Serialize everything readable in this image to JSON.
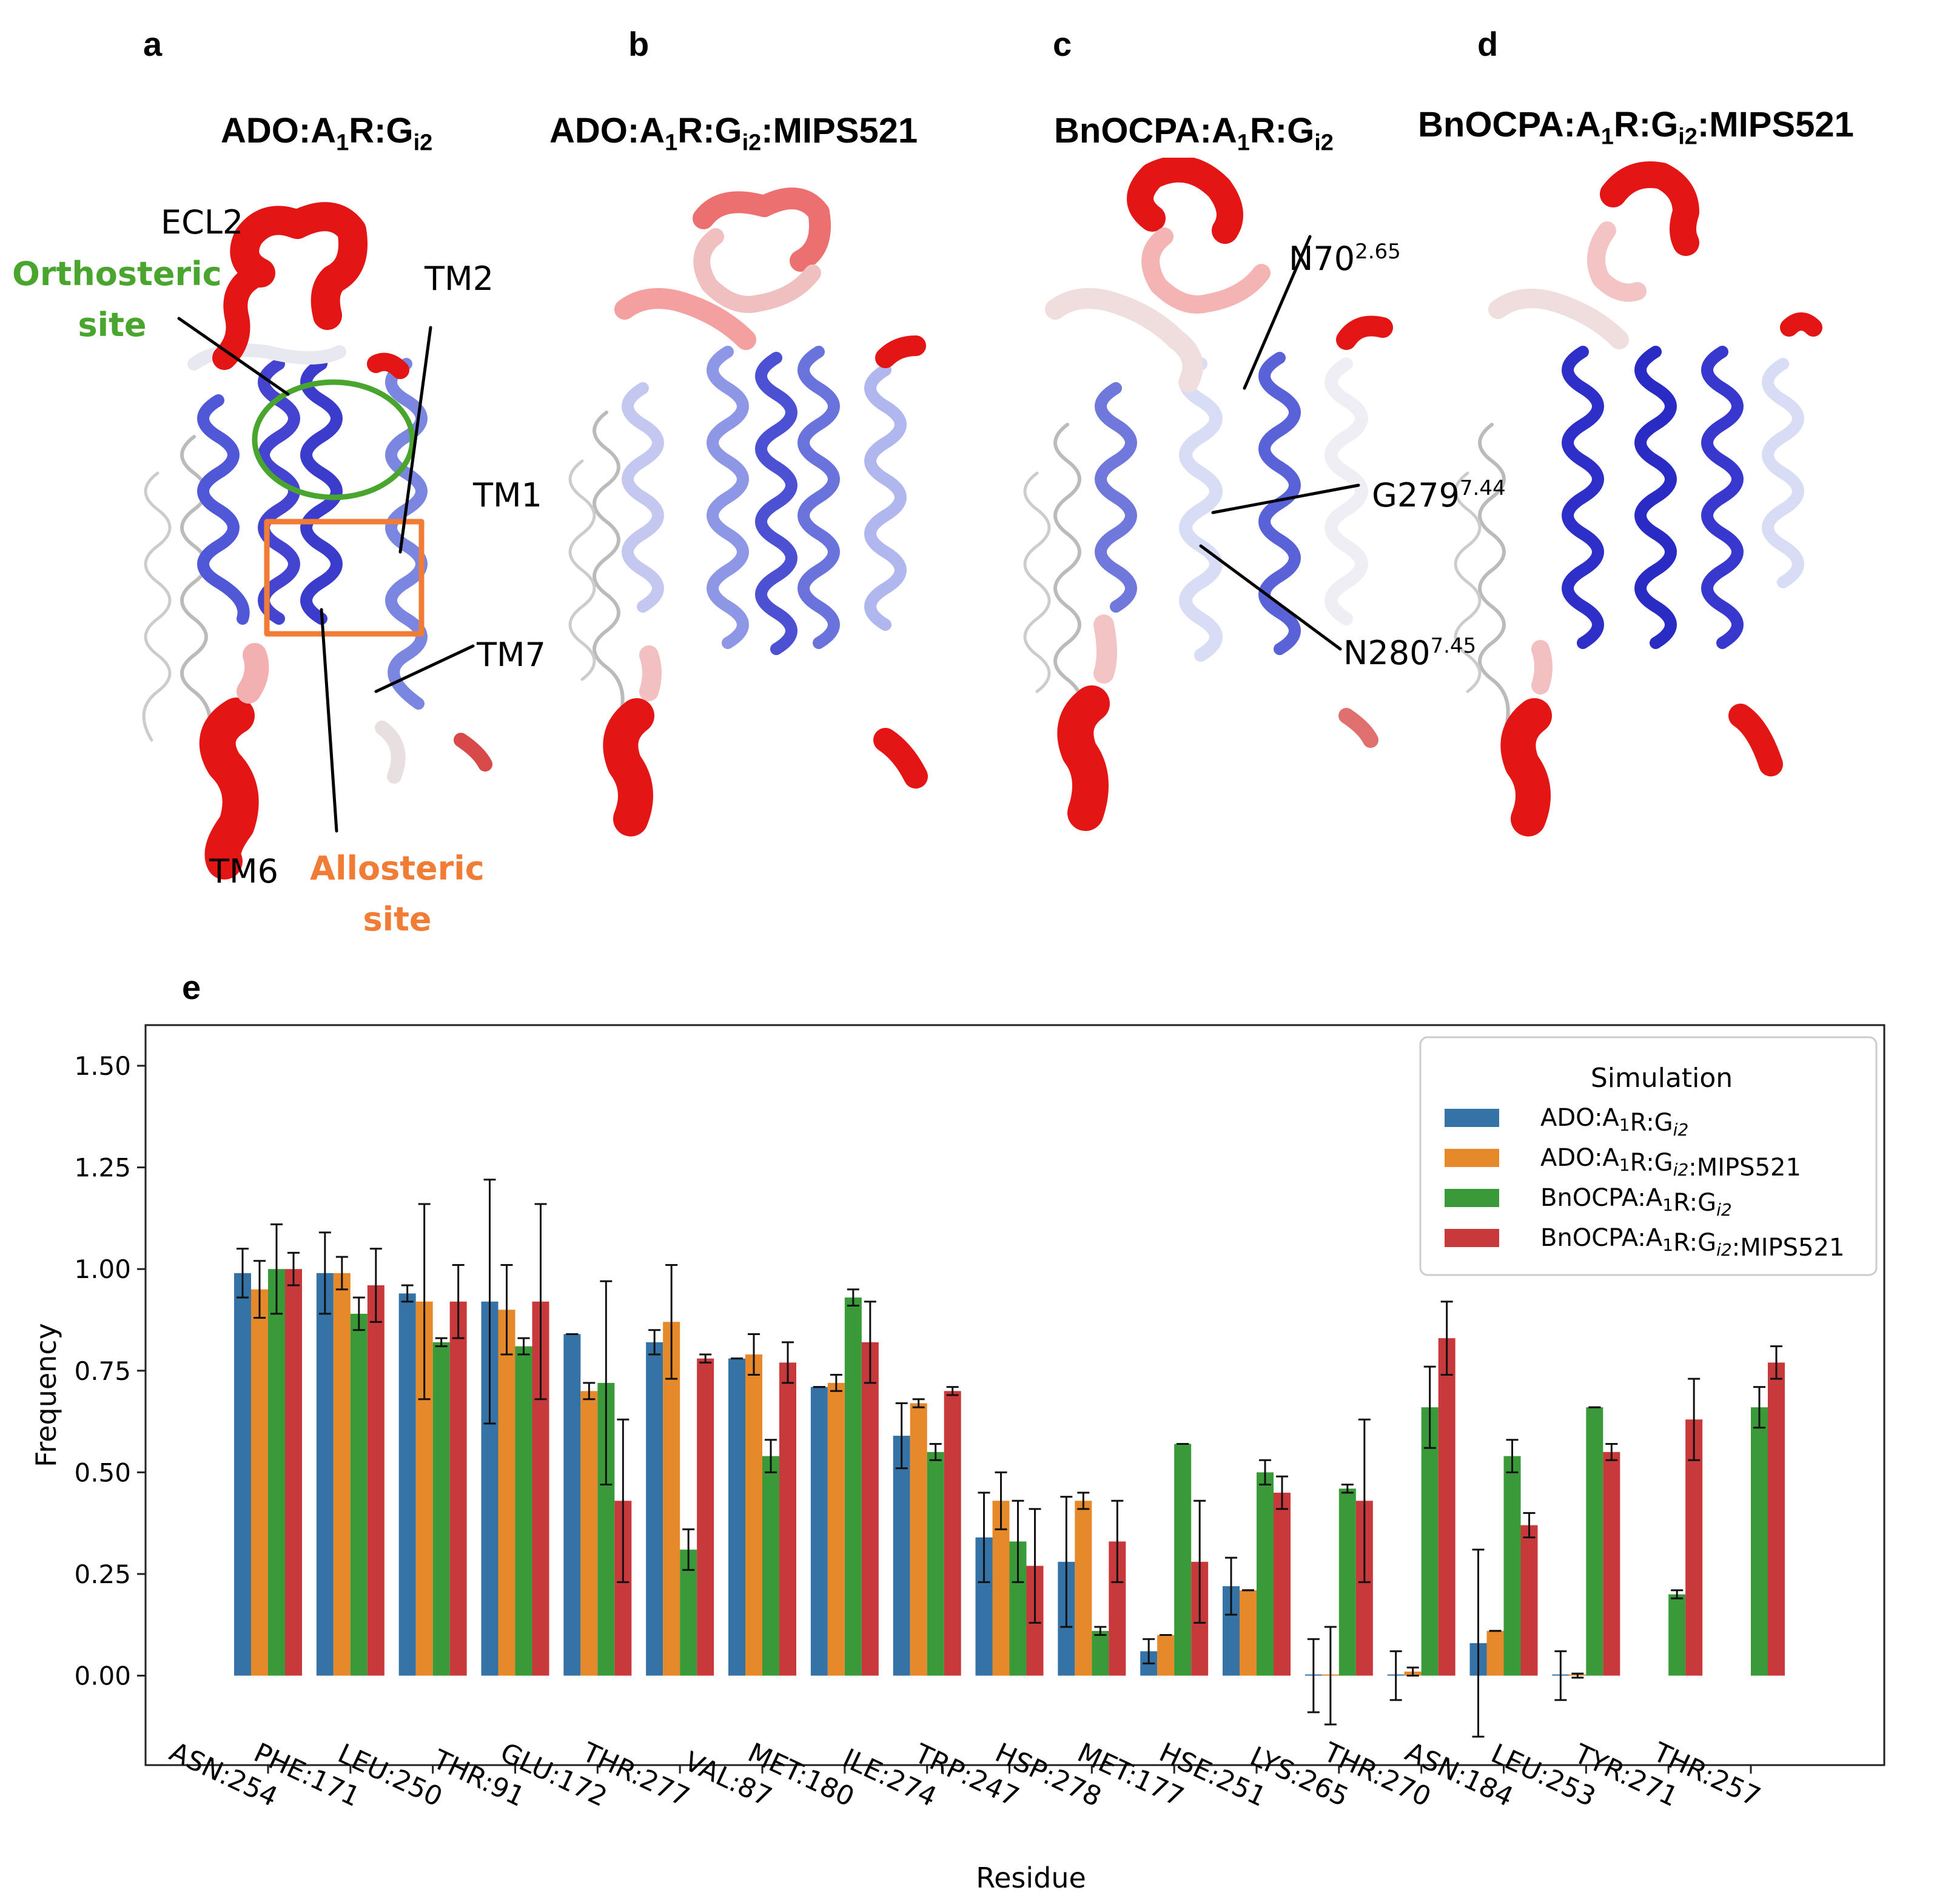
{
  "panels": {
    "a": {
      "letter": "a",
      "title_main": "ADO:A",
      "title_sub1": "1",
      "title_mid": "R:G",
      "title_sub2": "i2",
      "title_tail": ""
    },
    "b": {
      "letter": "b",
      "title_main": "ADO:A",
      "title_sub1": "1",
      "title_mid": "R:G",
      "title_sub2": "i2",
      "title_tail": ":MIPS521"
    },
    "c": {
      "letter": "c",
      "title_main": "BnOCPA:A",
      "title_sub1": "1",
      "title_mid": "R:G",
      "title_sub2": "i2",
      "title_tail": ""
    },
    "d": {
      "letter": "d",
      "title_main": "BnOCPA:A",
      "title_sub1": "1",
      "title_mid": "R:G",
      "title_sub2": "i2",
      "title_tail": ":MIPS521"
    },
    "e": {
      "letter": "e"
    }
  },
  "annotations_a": {
    "ecl2": "ECL2",
    "orthosteric_1": "Orthosteric",
    "orthosteric_2": "site",
    "tm2": "TM2",
    "tm1": "TM1",
    "tm7": "TM7",
    "tm6": "TM6",
    "allosteric_1": "Allosteric",
    "allosteric_2": "site"
  },
  "annotations_c": {
    "n70": "N70",
    "n70_sup": "2.65",
    "g279": "G279",
    "g279_sup": "7.44",
    "n280": "N280",
    "n280_sup": "7.45"
  },
  "colors": {
    "blue": "#3572a5",
    "orange": "#e5892b",
    "green": "#3a9a3a",
    "red": "#c8393c",
    "helix_blue": "#3c3ccc",
    "helix_red": "#e31515",
    "orthosteric_circle": "#4aa52e",
    "allosteric_box": "#f07c35"
  },
  "chart_data": {
    "type": "bar",
    "title": "",
    "xlabel": "Residue",
    "ylabel": "Frequency",
    "ylim": [
      -0.22,
      1.6
    ],
    "yticks": [
      "0.00",
      "0.25",
      "0.50",
      "0.75",
      "1.00",
      "1.25",
      "1.50"
    ],
    "ytick_values": [
      0.0,
      0.25,
      0.5,
      0.75,
      1.0,
      1.25,
      1.5
    ],
    "grid": false,
    "legend_title": "Simulation",
    "legend_position": "top-right",
    "categories": [
      "ASN:254",
      "PHE:171",
      "LEU:250",
      "THR:91",
      "GLU:172",
      "THR:277",
      "VAL:87",
      "MET:180",
      "ILE:274",
      "TRP:247",
      "HSP:278",
      "MET:177",
      "HSE:251",
      "LYS:265",
      "THR:270",
      "ASN:184",
      "LEU:253",
      "TYR:271",
      "THR:257"
    ],
    "series": [
      {
        "name": "ADO:A1R:Gi2",
        "legend_main": "ADO:A",
        "legend_sub1": "1",
        "legend_mid": "R:G",
        "legend_sub2": "i2",
        "legend_tail": "",
        "values": [
          0.99,
          0.99,
          0.94,
          0.92,
          0.84,
          0.82,
          0.78,
          0.71,
          0.59,
          0.34,
          0.28,
          0.06,
          0.22,
          0.0,
          0.0,
          0.08,
          0.0,
          null,
          null
        ],
        "errors": [
          0.06,
          0.1,
          0.02,
          0.3,
          0.0,
          0.03,
          0.0,
          0.0,
          0.08,
          0.11,
          0.16,
          0.03,
          0.07,
          0.09,
          0.06,
          0.23,
          0.06,
          null,
          null
        ]
      },
      {
        "name": "ADO:A1R:Gi2:MIPS521",
        "legend_main": "ADO:A",
        "legend_sub1": "1",
        "legend_mid": "R:G",
        "legend_sub2": "i2",
        "legend_tail": ":MIPS521",
        "values": [
          0.95,
          0.99,
          0.92,
          0.9,
          0.7,
          0.87,
          0.79,
          0.72,
          0.67,
          0.43,
          0.43,
          0.1,
          0.21,
          0.0,
          0.01,
          0.11,
          0.0,
          null,
          null
        ],
        "errors": [
          0.07,
          0.04,
          0.24,
          0.11,
          0.02,
          0.14,
          0.05,
          0.02,
          0.01,
          0.07,
          0.02,
          0.0,
          0.0,
          0.12,
          0.01,
          0.0,
          0.005,
          null,
          null
        ]
      },
      {
        "name": "BnOCPA:A1R:Gi2",
        "legend_main": "BnOCPA:A",
        "legend_sub1": "1",
        "legend_mid": "R:G",
        "legend_sub2": "i2",
        "legend_tail": "",
        "values": [
          1.0,
          0.89,
          0.82,
          0.81,
          0.72,
          0.31,
          0.54,
          0.93,
          0.55,
          0.33,
          0.11,
          0.57,
          0.5,
          0.46,
          0.66,
          0.54,
          0.66,
          0.2,
          0.66
        ],
        "errors": [
          0.11,
          0.04,
          0.01,
          0.02,
          0.25,
          0.05,
          0.04,
          0.02,
          0.02,
          0.1,
          0.01,
          0.0,
          0.03,
          0.01,
          0.1,
          0.04,
          0.0,
          0.01,
          0.05
        ]
      },
      {
        "name": "BnOCPA:A1R:Gi2:MIPS521",
        "legend_main": "BnOCPA:A",
        "legend_sub1": "1",
        "legend_mid": "R:G",
        "legend_sub2": "i2",
        "legend_tail": ":MIPS521",
        "values": [
          1.0,
          0.96,
          0.92,
          0.92,
          0.43,
          0.78,
          0.77,
          0.82,
          0.7,
          0.27,
          0.33,
          0.28,
          0.45,
          0.43,
          0.83,
          0.37,
          0.55,
          0.63,
          0.77
        ],
        "errors": [
          0.04,
          0.09,
          0.09,
          0.24,
          0.2,
          0.01,
          0.05,
          0.1,
          0.01,
          0.14,
          0.1,
          0.15,
          0.04,
          0.2,
          0.09,
          0.03,
          0.02,
          0.1,
          0.04
        ]
      }
    ]
  }
}
